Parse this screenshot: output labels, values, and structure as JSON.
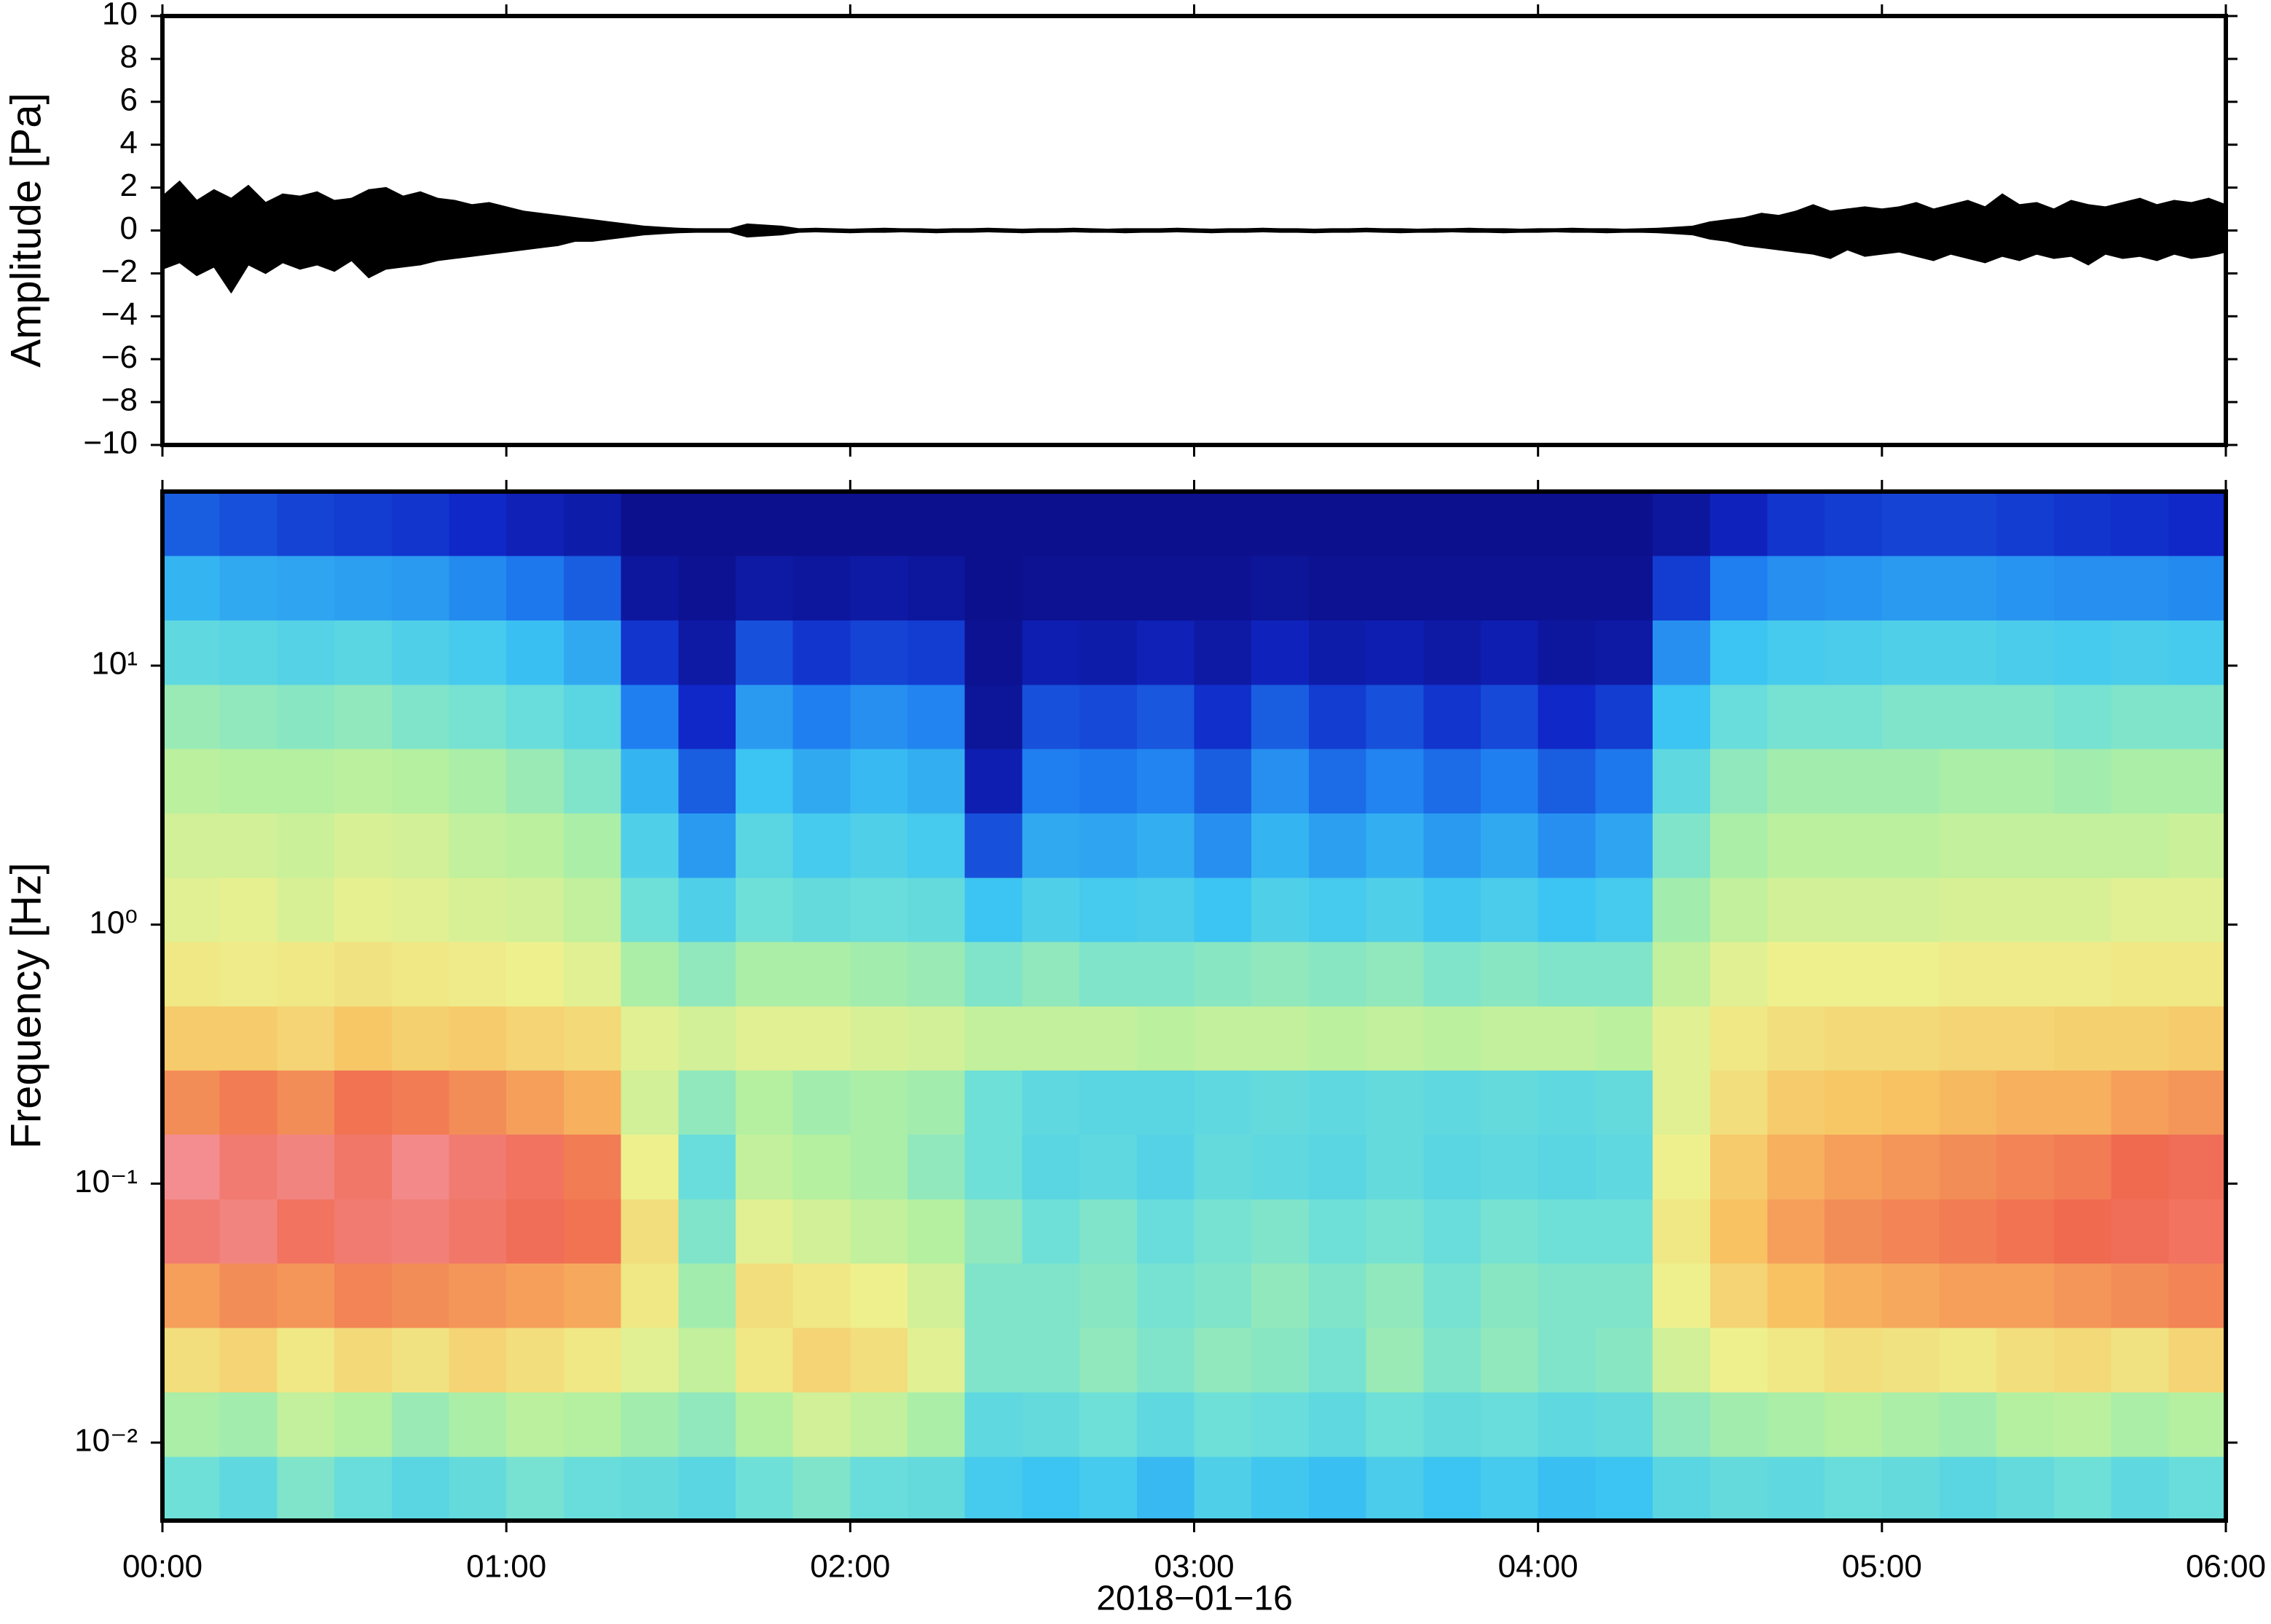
{
  "chart_data": [
    {
      "type": "band",
      "ylabel": "Amplitude [Pa]",
      "color": "#000000",
      "x": [
        0,
        3,
        6,
        9,
        12,
        15,
        18,
        21,
        24,
        27,
        30,
        33,
        36,
        39,
        42,
        45,
        48,
        51,
        54,
        57,
        60,
        63,
        66,
        69,
        72,
        75,
        78,
        81,
        84,
        87,
        90,
        93,
        96,
        99,
        102,
        105,
        108,
        111,
        114,
        117,
        120,
        123,
        126,
        129,
        132,
        135,
        138,
        141,
        144,
        147,
        150,
        153,
        156,
        159,
        162,
        165,
        168,
        171,
        174,
        177,
        180,
        183,
        186,
        189,
        192,
        195,
        198,
        201,
        204,
        207,
        210,
        213,
        216,
        219,
        222,
        225,
        228,
        231,
        234,
        237,
        240,
        243,
        246,
        249,
        252,
        255,
        258,
        261,
        264,
        267,
        270,
        273,
        276,
        279,
        282,
        285,
        288,
        291,
        294,
        297,
        300,
        303,
        306,
        309,
        312,
        315,
        318,
        321,
        324,
        327,
        330,
        333,
        336,
        339,
        342,
        345,
        348,
        351,
        354,
        357,
        360
      ],
      "upper": [
        1.6,
        2.3,
        1.4,
        1.9,
        1.5,
        2.1,
        1.3,
        1.7,
        1.6,
        1.8,
        1.4,
        1.5,
        1.9,
        2.0,
        1.6,
        1.8,
        1.5,
        1.4,
        1.2,
        1.3,
        1.1,
        0.9,
        0.8,
        0.7,
        0.6,
        0.5,
        0.4,
        0.3,
        0.2,
        0.15,
        0.1,
        0.08,
        0.08,
        0.08,
        0.3,
        0.25,
        0.2,
        0.08,
        0.1,
        0.08,
        0.06,
        0.08,
        0.1,
        0.08,
        0.08,
        0.06,
        0.08,
        0.08,
        0.1,
        0.08,
        0.06,
        0.08,
        0.08,
        0.1,
        0.08,
        0.06,
        0.08,
        0.08,
        0.08,
        0.1,
        0.08,
        0.06,
        0.08,
        0.08,
        0.1,
        0.08,
        0.08,
        0.06,
        0.08,
        0.08,
        0.1,
        0.08,
        0.08,
        0.06,
        0.08,
        0.08,
        0.1,
        0.08,
        0.08,
        0.06,
        0.08,
        0.08,
        0.1,
        0.08,
        0.08,
        0.06,
        0.08,
        0.1,
        0.15,
        0.2,
        0.4,
        0.5,
        0.6,
        0.8,
        0.7,
        0.9,
        1.2,
        0.9,
        1.0,
        1.1,
        1.0,
        1.1,
        1.3,
        1.0,
        1.2,
        1.4,
        1.1,
        1.7,
        1.2,
        1.3,
        1.0,
        1.4,
        1.2,
        1.1,
        1.3,
        1.5,
        1.2,
        1.4,
        1.3,
        1.5,
        1.2
      ],
      "lower": [
        -1.8,
        -1.5,
        -2.1,
        -1.7,
        -2.9,
        -1.6,
        -2.0,
        -1.5,
        -1.8,
        -1.6,
        -1.9,
        -1.4,
        -2.2,
        -1.8,
        -1.7,
        -1.6,
        -1.4,
        -1.3,
        -1.2,
        -1.1,
        -1.0,
        -0.9,
        -0.8,
        -0.7,
        -0.5,
        -0.5,
        -0.4,
        -0.3,
        -0.2,
        -0.15,
        -0.1,
        -0.08,
        -0.08,
        -0.08,
        -0.3,
        -0.25,
        -0.2,
        -0.08,
        -0.06,
        -0.08,
        -0.1,
        -0.08,
        -0.08,
        -0.06,
        -0.08,
        -0.1,
        -0.08,
        -0.08,
        -0.06,
        -0.08,
        -0.1,
        -0.08,
        -0.08,
        -0.06,
        -0.08,
        -0.08,
        -0.1,
        -0.08,
        -0.08,
        -0.06,
        -0.08,
        -0.1,
        -0.08,
        -0.08,
        -0.06,
        -0.08,
        -0.08,
        -0.1,
        -0.08,
        -0.08,
        -0.06,
        -0.08,
        -0.1,
        -0.08,
        -0.08,
        -0.06,
        -0.08,
        -0.08,
        -0.1,
        -0.08,
        -0.08,
        -0.06,
        -0.08,
        -0.08,
        -0.1,
        -0.08,
        -0.08,
        -0.1,
        -0.15,
        -0.2,
        -0.4,
        -0.5,
        -0.7,
        -0.8,
        -0.9,
        -1.0,
        -1.1,
        -1.3,
        -0.9,
        -1.2,
        -1.1,
        -1.0,
        -1.2,
        -1.4,
        -1.1,
        -1.3,
        -1.5,
        -1.2,
        -1.4,
        -1.1,
        -1.3,
        -1.2,
        -1.6,
        -1.1,
        -1.3,
        -1.2,
        -1.4,
        -1.1,
        -1.3,
        -1.2,
        -1.0
      ],
      "xlim": [
        0,
        360
      ],
      "xticks": [
        0,
        60,
        120,
        180,
        240,
        300,
        360
      ],
      "ylim": [
        -10,
        10
      ],
      "yticks": [
        {
          "value": -10,
          "label": "−10"
        },
        {
          "value": -8,
          "label": "−8"
        },
        {
          "value": -6,
          "label": "−6"
        },
        {
          "value": -4,
          "label": "−4"
        },
        {
          "value": -2,
          "label": "−2"
        },
        0,
        2,
        4,
        6,
        8,
        10
      ]
    },
    {
      "type": "heatmap",
      "ylabel": "Frequency [Hz]",
      "xlabel": "2018−01−16",
      "yscale": "log",
      "xbins": [
        0,
        10,
        20,
        30,
        40,
        50,
        60,
        70,
        80,
        90,
        100,
        110,
        120,
        130,
        140,
        150,
        160,
        170,
        180,
        190,
        200,
        210,
        220,
        230,
        240,
        250,
        260,
        270,
        280,
        290,
        300,
        310,
        320,
        330,
        340,
        350,
        360
      ],
      "ybins": [
        0.005,
        0.00885,
        0.0157,
        0.0278,
        0.0493,
        0.0873,
        0.155,
        0.274,
        0.485,
        0.86,
        1.52,
        2.7,
        4.78,
        8.47,
        15,
        26.6,
        47
      ],
      "zlim": [
        0,
        100
      ],
      "colorscale": [
        [
          0,
          "#0b0b80"
        ],
        [
          12,
          "#1028c8"
        ],
        [
          25,
          "#1f7ff0"
        ],
        [
          38,
          "#3cc4f2"
        ],
        [
          48,
          "#6ee0d8"
        ],
        [
          56,
          "#b4f0a0"
        ],
        [
          64,
          "#eef08e"
        ],
        [
          74,
          "#f8c262"
        ],
        [
          84,
          "#f06a50"
        ],
        [
          95,
          "#f49aa8"
        ],
        [
          100,
          "#f8b0c0"
        ]
      ],
      "z": [
        [
          48,
          55,
          68,
          78,
          88,
          92,
          80,
          72,
          66,
          62,
          60,
          57,
          53,
          45,
          35,
          20
        ],
        [
          45,
          54,
          70,
          80,
          90,
          88,
          82,
          72,
          65,
          63,
          60,
          56,
          52,
          44,
          33,
          18
        ],
        [
          50,
          58,
          66,
          79,
          86,
          90,
          80,
          70,
          66,
          61,
          59,
          56,
          51,
          43,
          32,
          16
        ],
        [
          47,
          56,
          69,
          81,
          88,
          87,
          83,
          73,
          67,
          63,
          61,
          57,
          52,
          44,
          31,
          15
        ],
        [
          44,
          53,
          67,
          80,
          89,
          91,
          82,
          71,
          66,
          62,
          60,
          56,
          50,
          42,
          30,
          14
        ],
        [
          46,
          55,
          70,
          79,
          87,
          88,
          80,
          72,
          65,
          61,
          58,
          55,
          49,
          40,
          27,
          12
        ],
        [
          49,
          57,
          68,
          78,
          85,
          86,
          78,
          70,
          64,
          60,
          57,
          53,
          47,
          37,
          24,
          9
        ],
        [
          47,
          56,
          66,
          77,
          83,
          82,
          76,
          69,
          62,
          58,
          55,
          50,
          44,
          33,
          20,
          7
        ],
        [
          46,
          54,
          62,
          66,
          68,
          64,
          60,
          62,
          55,
          48,
          42,
          35,
          25,
          14,
          5,
          2
        ],
        [
          44,
          52,
          58,
          54,
          50,
          47,
          52,
          60,
          52,
          42,
          30,
          20,
          12,
          6,
          3,
          2
        ],
        [
          48,
          56,
          66,
          68,
          62,
          58,
          56,
          62,
          55,
          48,
          44,
          38,
          30,
          18,
          6,
          2
        ],
        [
          50,
          60,
          70,
          66,
          60,
          56,
          54,
          62,
          55,
          46,
          40,
          33,
          25,
          14,
          5,
          2
        ],
        [
          47,
          58,
          68,
          64,
          58,
          55,
          55,
          61,
          54,
          47,
          42,
          36,
          28,
          16,
          6,
          2
        ],
        [
          46,
          55,
          62,
          60,
          56,
          52,
          54,
          60,
          53,
          46,
          40,
          34,
          26,
          15,
          5,
          2
        ],
        [
          40,
          45,
          50,
          50,
          52,
          48,
          48,
          58,
          50,
          38,
          18,
          8,
          4,
          3,
          2,
          2
        ],
        [
          38,
          46,
          50,
          50,
          48,
          44,
          45,
          58,
          52,
          42,
          33,
          25,
          18,
          8,
          3,
          2
        ],
        [
          40,
          48,
          52,
          51,
          50,
          45,
          44,
          58,
          50,
          40,
          32,
          24,
          17,
          7,
          3,
          2
        ],
        [
          36,
          45,
          50,
          49,
          47,
          43,
          44,
          57,
          50,
          41,
          34,
          26,
          19,
          9,
          3,
          2
        ],
        [
          42,
          48,
          52,
          50,
          49,
          46,
          45,
          58,
          51,
          38,
          28,
          20,
          13,
          6,
          3,
          2
        ],
        [
          39,
          47,
          51,
          52,
          50,
          45,
          46,
          58,
          52,
          42,
          35,
          28,
          20,
          10,
          4,
          2
        ],
        [
          37,
          45,
          49,
          50,
          48,
          44,
          45,
          57,
          51,
          40,
          31,
          22,
          15,
          7,
          3,
          2
        ],
        [
          41,
          48,
          53,
          52,
          49,
          46,
          46,
          58,
          52,
          42,
          34,
          26,
          18,
          8,
          3,
          2
        ],
        [
          38,
          46,
          50,
          49,
          47,
          44,
          45,
          57,
          50,
          39,
          30,
          22,
          14,
          6,
          3,
          2
        ],
        [
          40,
          47,
          52,
          51,
          49,
          45,
          46,
          58,
          51,
          41,
          33,
          25,
          17,
          8,
          3,
          2
        ],
        [
          37,
          45,
          50,
          50,
          48,
          44,
          45,
          58,
          50,
          38,
          28,
          20,
          12,
          5,
          3,
          2
        ],
        [
          38,
          46,
          51,
          50,
          48,
          45,
          46,
          57,
          50,
          40,
          32,
          24,
          15,
          6,
          3,
          2
        ],
        [
          44,
          52,
          60,
          64,
          66,
          64,
          62,
          62,
          58,
          54,
          50,
          45,
          38,
          28,
          15,
          5
        ],
        [
          46,
          54,
          64,
          70,
          74,
          72,
          68,
          66,
          62,
          58,
          55,
          52,
          47,
          38,
          25,
          10
        ],
        [
          45,
          55,
          66,
          74,
          78,
          76,
          72,
          68,
          64,
          60,
          57,
          54,
          49,
          40,
          28,
          14
        ],
        [
          47,
          56,
          68,
          76,
          80,
          78,
          73,
          69,
          64,
          60,
          57,
          54,
          49,
          41,
          29,
          15
        ],
        [
          46,
          55,
          67,
          77,
          81,
          79,
          74,
          69,
          64,
          60,
          57,
          54,
          50,
          42,
          30,
          16
        ],
        [
          44,
          54,
          66,
          78,
          82,
          80,
          75,
          70,
          65,
          61,
          58,
          55,
          50,
          42,
          30,
          16
        ],
        [
          46,
          56,
          68,
          78,
          83,
          81,
          76,
          70,
          65,
          61,
          58,
          55,
          50,
          41,
          29,
          15
        ],
        [
          48,
          57,
          69,
          79,
          84,
          82,
          76,
          71,
          65,
          61,
          58,
          54,
          49,
          40,
          28,
          14
        ],
        [
          45,
          55,
          67,
          80,
          85,
          84,
          78,
          71,
          66,
          62,
          58,
          55,
          50,
          41,
          28,
          13
        ],
        [
          47,
          56,
          70,
          81,
          86,
          85,
          79,
          72,
          66,
          62,
          59,
          55,
          50,
          40,
          27,
          12
        ]
      ],
      "xlim": [
        0,
        360
      ],
      "xticks": [
        {
          "value": 0,
          "label": "00:00"
        },
        {
          "value": 60,
          "label": "01:00"
        },
        {
          "value": 120,
          "label": "02:00"
        },
        {
          "value": 180,
          "label": "03:00"
        },
        {
          "value": 240,
          "label": "04:00"
        },
        {
          "value": 300,
          "label": "05:00"
        },
        {
          "value": 360,
          "label": "06:00"
        }
      ],
      "ylim": [
        0.005,
        47
      ],
      "yticks": [
        {
          "value": 0.01,
          "label": "10⁻²"
        },
        {
          "value": 0.1,
          "label": "10⁻¹"
        },
        {
          "value": 1,
          "label": "10⁰"
        },
        {
          "value": 10,
          "label": "10¹"
        }
      ]
    }
  ]
}
